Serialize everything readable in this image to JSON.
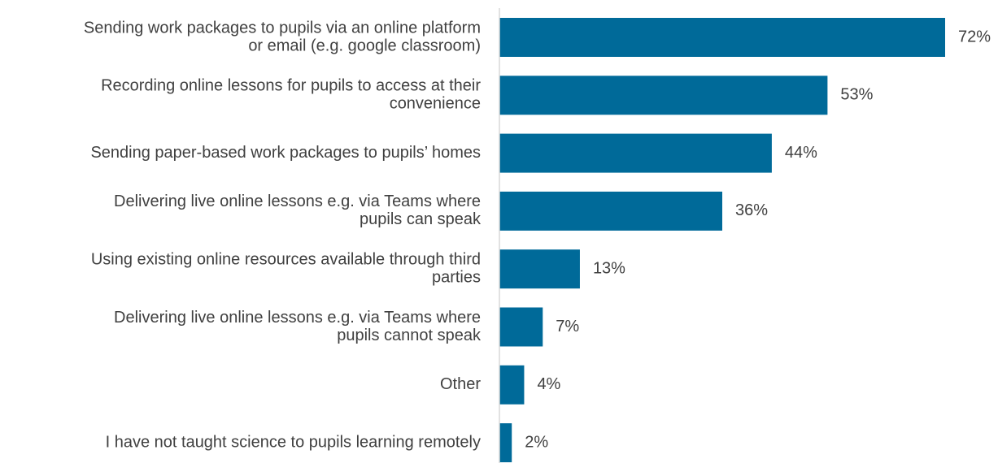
{
  "chart_data": {
    "type": "bar",
    "orientation": "horizontal",
    "categories": [
      [
        "Sending work packages to pupils via an online platform",
        "or email (e.g. google classroom)"
      ],
      [
        "Recording online lessons for pupils to access at their",
        "convenience"
      ],
      [
        "Sending paper-based work packages to pupils’ homes"
      ],
      [
        "Delivering live online lessons e.g. via Teams where",
        "pupils can speak"
      ],
      [
        "Using existing online resources available through third",
        "parties"
      ],
      [
        "Delivering live online lessons e.g. via Teams where",
        "pupils cannot speak"
      ],
      [
        "Other"
      ],
      [
        "I have not taught science to pupils learning remotely"
      ]
    ],
    "values": [
      72,
      53,
      44,
      36,
      13,
      7,
      4,
      2
    ],
    "value_suffix": "%",
    "xlim": [
      0,
      72
    ],
    "grid": false,
    "legend": "none",
    "colors": {
      "bar": "#006A99",
      "label_text": "#404040",
      "axis_line": "#D9D9D9"
    }
  }
}
